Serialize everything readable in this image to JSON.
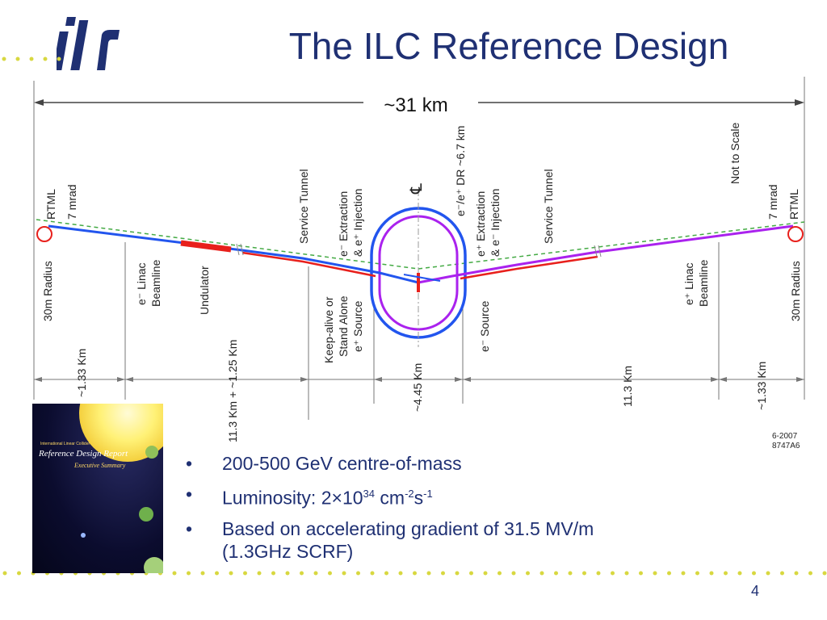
{
  "slide": {
    "title": "The ILC Reference Design",
    "logo_text": "ilc",
    "page_number": "4"
  },
  "diagram": {
    "span_label": "~31 km",
    "rotated_labels": {
      "rtml_left": "RTML",
      "mrad_left": "7 mrad",
      "radius_left": "30m Radius",
      "linac_left_1": "e⁻ Linac",
      "linac_left_2": "Beamline",
      "undulator": "Undulator",
      "service_tunnel_left": "Service Tunnel",
      "keepalive_1": "Keep-alive or",
      "keepalive_2": "Stand Alone",
      "keepalive_3": "e⁺ Source",
      "extraction_left_1": "e⁻ Extraction",
      "extraction_left_2": "& e⁺ Injection",
      "centerline": "℄",
      "dr": "e⁻/e⁺ DR ~6.7 km",
      "extraction_right_1": "e⁺ Extraction",
      "extraction_right_2": "& e⁻ Injection",
      "esource": "e⁻ Source",
      "service_tunnel_right": "Service Tunnel",
      "not_to_scale": "Not to Scale",
      "rtml_right": "RTML",
      "mrad_right": "7 mrad",
      "radius_right": "30m Radius",
      "linac_right_1": "e⁺ Linac",
      "linac_right_2": "Beamline"
    },
    "dimensions": {
      "d1": "~1.33 Km",
      "d2": "11.3 Km + ~1.25 Km",
      "d3": "~4.45 Km",
      "d4": "11.3 Km",
      "d5": "~1.33 Km"
    },
    "drawing_id_1": "6-2007",
    "drawing_id_2": "8747A6",
    "colors": {
      "electron_line": "#2255ee",
      "positron_line": "#aa22ee",
      "undulator": "#e8201c",
      "guide": "#44aa44",
      "ring_outer": "#2255ee",
      "ring_inner": "#aa22ee"
    }
  },
  "cover": {
    "top_text": "International Linear Collider",
    "title": "Reference Design Report",
    "subtitle": "Executive Summary"
  },
  "bullets": {
    "b1": "200-500 GeV centre-of-mass",
    "b2_prefix": "Luminosity: 2×10",
    "b2_sup1": "34",
    "b2_mid": " cm",
    "b2_sup2": "-2",
    "b2_s": "s",
    "b2_sup3": "-1",
    "b3_line1": "Based on accelerating gradient of 31.5 MV/m",
    "b3_line2": "(1.3GHz SCRF)",
    "mark": "•"
  },
  "theme": {
    "title_color": "#1f3073",
    "dot_color": "#d8d840"
  }
}
